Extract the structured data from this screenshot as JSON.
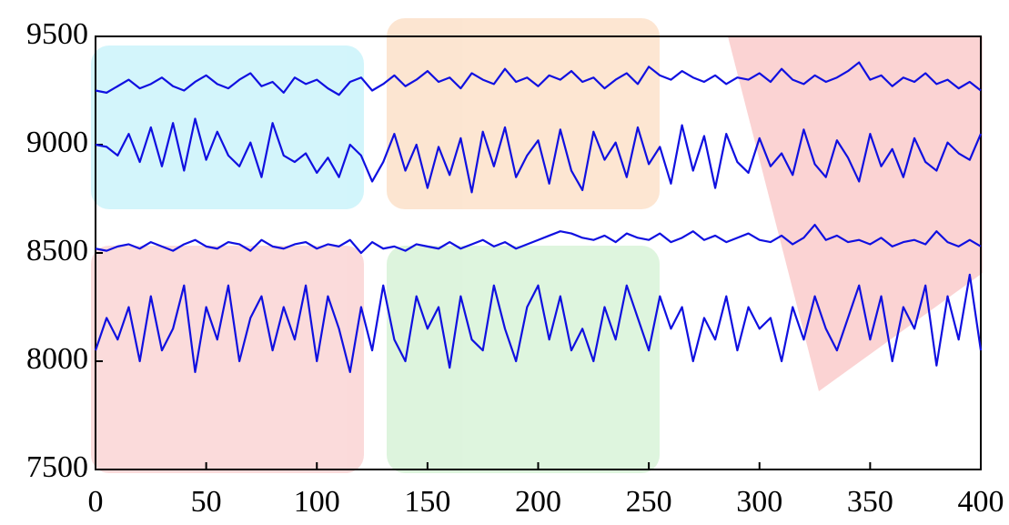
{
  "chart_data": {
    "type": "line",
    "x": [
      0,
      5,
      10,
      15,
      20,
      25,
      30,
      35,
      40,
      45,
      50,
      55,
      60,
      65,
      70,
      75,
      80,
      85,
      90,
      95,
      100,
      105,
      110,
      115,
      120,
      125,
      130,
      135,
      140,
      145,
      150,
      155,
      160,
      165,
      170,
      175,
      180,
      185,
      190,
      195,
      200,
      205,
      210,
      215,
      220,
      225,
      230,
      235,
      240,
      245,
      250,
      255,
      260,
      265,
      270,
      275,
      280,
      285,
      290,
      295,
      300,
      305,
      310,
      315,
      320,
      325,
      330,
      335,
      340,
      345,
      350,
      355,
      360,
      365,
      370,
      375,
      380,
      385,
      390,
      395,
      400
    ],
    "series": [
      {
        "color": "#1010e0",
        "values": [
          9250,
          9240,
          9270,
          9300,
          9260,
          9280,
          9310,
          9270,
          9250,
          9290,
          9320,
          9280,
          9260,
          9300,
          9330,
          9270,
          9290,
          9240,
          9310,
          9280,
          9300,
          9260,
          9230,
          9290,
          9310,
          9250,
          9280,
          9320,
          9270,
          9300,
          9340,
          9290,
          9310,
          9260,
          9330,
          9300,
          9280,
          9350,
          9290,
          9310,
          9270,
          9320,
          9300,
          9340,
          9290,
          9310,
          9260,
          9300,
          9330,
          9280,
          9360,
          9320,
          9300,
          9340,
          9310,
          9290,
          9320,
          9280,
          9310,
          9300,
          9330,
          9290,
          9350,
          9300,
          9280,
          9320,
          9290,
          9310,
          9340,
          9380,
          9300,
          9320,
          9270,
          9310,
          9290,
          9330,
          9280,
          9300,
          9260,
          9290,
          9250
        ]
      },
      {
        "color": "#1010e0",
        "values": [
          9000,
          8990,
          8950,
          9050,
          8920,
          9080,
          8900,
          9100,
          8880,
          9120,
          8930,
          9060,
          8950,
          8900,
          9010,
          8850,
          9100,
          8950,
          8920,
          8960,
          8870,
          8940,
          8850,
          9000,
          8950,
          8830,
          8920,
          9050,
          8880,
          9000,
          8800,
          8990,
          8860,
          9030,
          8780,
          9060,
          8900,
          9080,
          8850,
          8950,
          9020,
          8820,
          9070,
          8880,
          8790,
          9060,
          8930,
          9010,
          8850,
          9080,
          8910,
          8990,
          8820,
          9090,
          8880,
          9040,
          8800,
          9050,
          8920,
          8870,
          9030,
          8900,
          8960,
          8860,
          9070,
          8910,
          8850,
          9020,
          8940,
          8830,
          9050,
          8900,
          8980,
          8850,
          9030,
          8920,
          8880,
          9010,
          8960,
          8930,
          9050
        ]
      },
      {
        "color": "#1010e0",
        "values": [
          8520,
          8510,
          8530,
          8540,
          8520,
          8550,
          8530,
          8510,
          8540,
          8560,
          8530,
          8520,
          8550,
          8540,
          8510,
          8560,
          8530,
          8520,
          8540,
          8550,
          8520,
          8540,
          8530,
          8560,
          8500,
          8550,
          8520,
          8530,
          8510,
          8540,
          8530,
          8520,
          8550,
          8520,
          8540,
          8560,
          8530,
          8550,
          8520,
          8540,
          8560,
          8580,
          8600,
          8590,
          8570,
          8560,
          8580,
          8550,
          8590,
          8570,
          8560,
          8590,
          8550,
          8570,
          8600,
          8560,
          8580,
          8550,
          8570,
          8590,
          8560,
          8550,
          8580,
          8540,
          8570,
          8630,
          8560,
          8580,
          8550,
          8560,
          8540,
          8570,
          8530,
          8550,
          8560,
          8540,
          8600,
          8550,
          8530,
          8560,
          8530
        ]
      },
      {
        "color": "#1010e0",
        "values": [
          8050,
          8200,
          8100,
          8250,
          8000,
          8300,
          8050,
          8150,
          8350,
          7950,
          8250,
          8100,
          8350,
          8000,
          8200,
          8300,
          8050,
          8250,
          8100,
          8350,
          8000,
          8300,
          8150,
          7950,
          8250,
          8050,
          8350,
          8100,
          8000,
          8300,
          8150,
          8250,
          7970,
          8300,
          8100,
          8050,
          8350,
          8150,
          8000,
          8250,
          8350,
          8100,
          8300,
          8050,
          8150,
          8000,
          8250,
          8100,
          8350,
          8200,
          8050,
          8300,
          8150,
          8250,
          8000,
          8200,
          8100,
          8300,
          8050,
          8250,
          8150,
          8200,
          8000,
          8250,
          8100,
          8300,
          8150,
          8050,
          8200,
          8350,
          8100,
          8300,
          8000,
          8250,
          8150,
          8350,
          7980,
          8300,
          8100,
          8400,
          8050
        ]
      }
    ],
    "xlim": [
      0,
      400
    ],
    "xticks": [
      0,
      50,
      100,
      150,
      200,
      250,
      300,
      350,
      400
    ],
    "ylim": [
      7500,
      9500
    ],
    "yticks": [
      7500,
      8000,
      8500,
      9000,
      9500
    ]
  }
}
